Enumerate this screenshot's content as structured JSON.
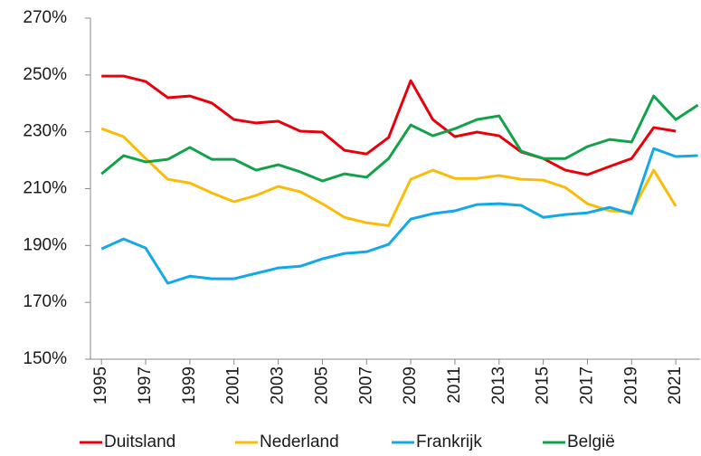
{
  "chart_data": {
    "type": "line",
    "x": [
      1995,
      1996,
      1997,
      1998,
      1999,
      2000,
      2001,
      2002,
      2003,
      2004,
      2005,
      2006,
      2007,
      2008,
      2009,
      2010,
      2011,
      2012,
      2013,
      2014,
      2015,
      2016,
      2017,
      2018,
      2019,
      2020,
      2021,
      2022
    ],
    "series": [
      {
        "name": "Duitsland",
        "color": "#e8000b",
        "values": [
          249.6,
          249.6,
          247.7,
          242,
          242.6,
          240.1,
          234.3,
          233.1,
          233.7,
          230.2,
          229.9,
          223.5,
          222.2,
          228,
          248,
          234.3,
          228.3,
          229.9,
          228.6,
          222.9,
          220.6,
          216.5,
          214.9,
          217.8,
          220.6,
          231.5,
          230.2,
          null
        ]
      },
      {
        "name": "Nederland",
        "color": "#fbbc09",
        "values": [
          231.1,
          228.3,
          220.6,
          213.3,
          212,
          208.5,
          205.4,
          207.6,
          210.8,
          208.9,
          204.7,
          199.9,
          198,
          197,
          213.3,
          216.5,
          213.6,
          213.6,
          214.6,
          213.3,
          213,
          210.4,
          204.7,
          202.2,
          201.8,
          216.5,
          203.8,
          null
        ]
      },
      {
        "name": "Frankrijk",
        "color": "#12a9e6",
        "values": [
          188.8,
          192.3,
          189.1,
          176.7,
          179.2,
          178.3,
          178.3,
          180.2,
          182.1,
          182.7,
          185.3,
          187.2,
          187.8,
          190.4,
          199.3,
          201.2,
          202.2,
          204.4,
          204.7,
          204.1,
          199.9,
          200.9,
          201.5,
          203.4,
          201.2,
          224.1,
          221.3,
          221.6
        ]
      },
      {
        "name": "België",
        "color": "#12a24a",
        "values": [
          215.2,
          221.6,
          219.4,
          220.3,
          224.5,
          220.3,
          220.3,
          216.5,
          218.4,
          215.9,
          212.7,
          215.2,
          214,
          220.6,
          232.4,
          228.6,
          231.1,
          234.3,
          235.6,
          223.2,
          220.6,
          220.6,
          224.8,
          227.3,
          226.4,
          242.6,
          234.3,
          239.4
        ]
      }
    ],
    "xlim": [
      1994.5,
      2022.1
    ],
    "xticks": [
      1995,
      1997,
      1999,
      2001,
      2003,
      2005,
      2007,
      2009,
      2011,
      2013,
      2015,
      2017,
      2019,
      2021
    ],
    "ylim": [
      150,
      270
    ],
    "yticks": [
      {
        "value": 150,
        "label": "150%"
      },
      {
        "value": 170,
        "label": "170%"
      },
      {
        "value": 190,
        "label": "190%"
      },
      {
        "value": 210,
        "label": "210%"
      },
      {
        "value": 230,
        "label": "230%"
      },
      {
        "value": 250,
        "label": "250%"
      },
      {
        "value": 270,
        "label": "270%"
      }
    ],
    "legend": "bottom"
  }
}
